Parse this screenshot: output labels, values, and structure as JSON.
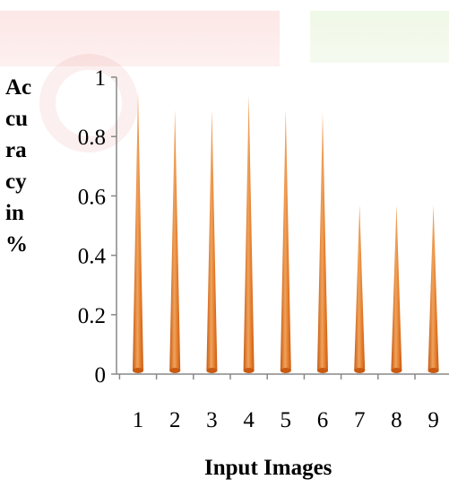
{
  "chart_data": {
    "type": "bar",
    "ylabel": "Ac\ncu\nra\ncy\nin\n%",
    "xlabel": "Input Images",
    "categories": [
      "1",
      "2",
      "3",
      "4",
      "5",
      "6",
      "7",
      "8",
      "9"
    ],
    "values": [
      0.95,
      0.89,
      0.89,
      0.94,
      0.89,
      0.88,
      0.57,
      0.57,
      0.57
    ],
    "yticks": [
      "0",
      "0.2",
      "0.4",
      "0.6",
      "0.8",
      "1"
    ],
    "ylim": [
      0,
      1
    ],
    "grid": false,
    "colors": {
      "bar_light": "#f0a35c",
      "bar_mid": "#e67f2e",
      "bar_dark": "#c85a12"
    }
  }
}
